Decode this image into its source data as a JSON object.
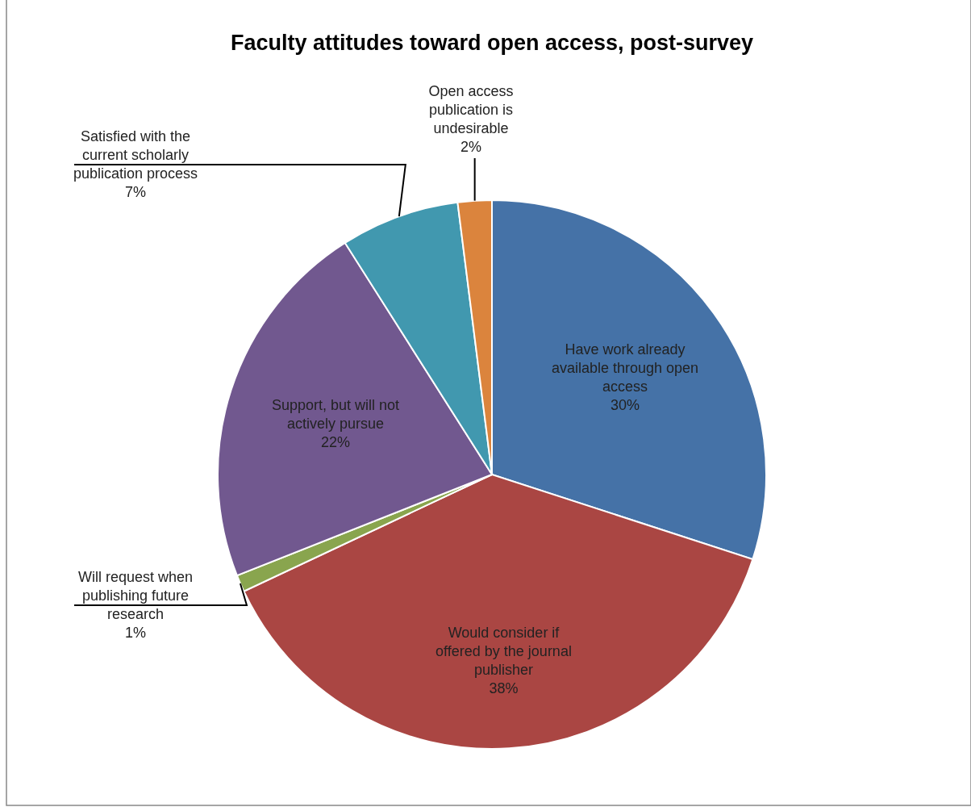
{
  "chart_data": {
    "type": "pie",
    "title": "Faculty attitudes toward open access, post-survey",
    "categories": [
      "Have work already available through open access",
      "Would consider if offered by the journal publisher",
      "Will request when publishing future research",
      "Support, but will not actively pursue",
      "Satisfied with the current scholarly publication process",
      "Open access publication is undesirable"
    ],
    "values": [
      30,
      38,
      1,
      22,
      7,
      2
    ],
    "value_labels": [
      "30%",
      "38%",
      "1%",
      "22%",
      "7%",
      "2%"
    ],
    "colors": [
      "#4572a7",
      "#aa4643",
      "#89a54e",
      "#71588f",
      "#4198af",
      "#db843d"
    ]
  }
}
